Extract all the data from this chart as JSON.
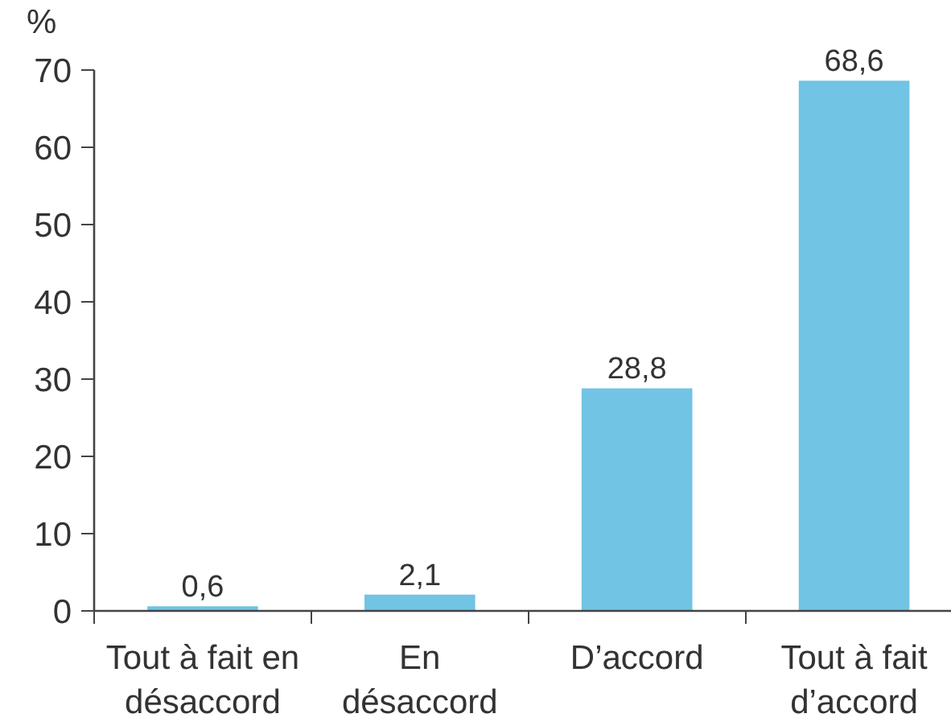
{
  "chart_data": {
    "type": "bar",
    "ylabel": "%",
    "categories": [
      "Tout à fait en\ndésaccord",
      "En\ndésaccord",
      "D’accord",
      "Tout à fait\nd’accord"
    ],
    "values": [
      0.6,
      2.1,
      28.8,
      68.6
    ],
    "value_labels": [
      "0,6",
      "2,1",
      "28,8",
      "68,6"
    ],
    "color": "#71c4e3",
    "ylim": [
      0,
      70
    ],
    "yticks": [
      0,
      10,
      20,
      30,
      40,
      50,
      60,
      70
    ],
    "grid": false
  }
}
